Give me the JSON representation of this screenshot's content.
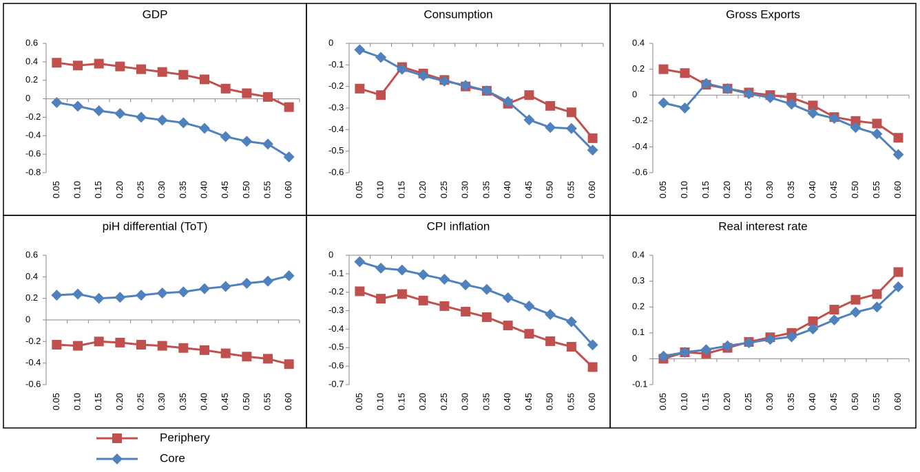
{
  "chart_data": [
    {
      "type": "line",
      "title": "GDP",
      "categories": [
        "0.05",
        "0.10",
        "0.15",
        "0.20",
        "0.25",
        "0.30",
        "0.35",
        "0.40",
        "0.45",
        "0.50",
        "0.55",
        "0.60"
      ],
      "series": [
        {
          "name": "Periphery",
          "color": "#c0504d",
          "marker": "square",
          "values": [
            0.39,
            0.36,
            0.38,
            0.35,
            0.32,
            0.29,
            0.26,
            0.21,
            0.11,
            0.06,
            0.02,
            -0.09
          ]
        },
        {
          "name": "Core",
          "color": "#4f81bd",
          "marker": "diamond",
          "values": [
            -0.04,
            -0.08,
            -0.13,
            -0.16,
            -0.2,
            -0.23,
            -0.26,
            -0.32,
            -0.41,
            -0.46,
            -0.49,
            -0.63
          ]
        }
      ],
      "ylim": [
        -0.8,
        0.6
      ],
      "yticks": [
        -0.8,
        -0.6,
        -0.4,
        -0.2,
        0,
        0.2,
        0.4,
        0.6
      ]
    },
    {
      "type": "line",
      "title": "Consumption",
      "categories": [
        "0.05",
        "0.10",
        "0.15",
        "0.20",
        "0.25",
        "0.30",
        "0.35",
        "0.40",
        "0.45",
        "0.50",
        "0.55",
        "0.60"
      ],
      "series": [
        {
          "name": "Periphery",
          "color": "#c0504d",
          "marker": "square",
          "values": [
            -0.21,
            -0.24,
            -0.11,
            -0.14,
            -0.17,
            -0.2,
            -0.22,
            -0.28,
            -0.24,
            -0.29,
            -0.32,
            -0.44
          ]
        },
        {
          "name": "Core",
          "color": "#4f81bd",
          "marker": "diamond",
          "values": [
            -0.03,
            -0.065,
            -0.12,
            -0.15,
            -0.175,
            -0.195,
            -0.22,
            -0.27,
            -0.355,
            -0.39,
            -0.395,
            -0.495
          ]
        }
      ],
      "ylim": [
        -0.6,
        0
      ],
      "yticks": [
        -0.6,
        -0.5,
        -0.4,
        -0.3,
        -0.2,
        -0.1,
        0
      ]
    },
    {
      "type": "line",
      "title": "Gross Exports",
      "categories": [
        "0.05",
        "0.10",
        "0.15",
        "0.20",
        "0.25",
        "0.30",
        "0.35",
        "0.40",
        "0.45",
        "0.50",
        "0.55",
        "0.60"
      ],
      "series": [
        {
          "name": "Periphery",
          "color": "#c0504d",
          "marker": "square",
          "values": [
            0.2,
            0.17,
            0.08,
            0.05,
            0.02,
            0.0,
            -0.02,
            -0.08,
            -0.17,
            -0.2,
            -0.22,
            -0.33
          ]
        },
        {
          "name": "Core",
          "color": "#4f81bd",
          "marker": "diamond",
          "values": [
            -0.06,
            -0.1,
            0.09,
            0.05,
            0.01,
            -0.02,
            -0.07,
            -0.14,
            -0.18,
            -0.25,
            -0.3,
            -0.46
          ]
        }
      ],
      "ylim": [
        -0.6,
        0.4
      ],
      "yticks": [
        -0.6,
        -0.4,
        -0.2,
        0,
        0.2,
        0.4
      ]
    },
    {
      "type": "line",
      "title": "piH differential (ToT)",
      "categories": [
        "0.05",
        "0.10",
        "0.15",
        "0.20",
        "0.25",
        "0.30",
        "0.35",
        "0.40",
        "0.45",
        "0.50",
        "0.55",
        "0.60"
      ],
      "series": [
        {
          "name": "Periphery",
          "color": "#c0504d",
          "marker": "square",
          "values": [
            -0.23,
            -0.24,
            -0.2,
            -0.21,
            -0.23,
            -0.24,
            -0.26,
            -0.28,
            -0.31,
            -0.34,
            -0.36,
            -0.41
          ]
        },
        {
          "name": "Core",
          "color": "#4f81bd",
          "marker": "diamond",
          "values": [
            0.23,
            0.24,
            0.2,
            0.21,
            0.23,
            0.25,
            0.26,
            0.29,
            0.31,
            0.34,
            0.36,
            0.41
          ]
        }
      ],
      "ylim": [
        -0.6,
        0.6
      ],
      "yticks": [
        -0.6,
        -0.4,
        -0.2,
        0,
        0.2,
        0.4,
        0.6
      ]
    },
    {
      "type": "line",
      "title": "CPI inflation",
      "categories": [
        "0.05",
        "0.10",
        "0.15",
        "0.20",
        "0.25",
        "0.30",
        "0.35",
        "0.40",
        "0.45",
        "0.50",
        "0.55",
        "0.60"
      ],
      "series": [
        {
          "name": "Periphery",
          "color": "#c0504d",
          "marker": "square",
          "values": [
            -0.195,
            -0.235,
            -0.21,
            -0.245,
            -0.275,
            -0.305,
            -0.335,
            -0.38,
            -0.425,
            -0.465,
            -0.495,
            -0.605
          ]
        },
        {
          "name": "Core",
          "color": "#4f81bd",
          "marker": "diamond",
          "values": [
            -0.035,
            -0.07,
            -0.08,
            -0.105,
            -0.13,
            -0.16,
            -0.185,
            -0.23,
            -0.275,
            -0.32,
            -0.36,
            -0.485
          ]
        }
      ],
      "ylim": [
        -0.7,
        0
      ],
      "yticks": [
        -0.7,
        -0.6,
        -0.5,
        -0.4,
        -0.3,
        -0.2,
        -0.1,
        0
      ]
    },
    {
      "type": "line",
      "title": "Real interest rate",
      "categories": [
        "0.05",
        "0.10",
        "0.15",
        "0.20",
        "0.25",
        "0.30",
        "0.35",
        "0.40",
        "0.45",
        "0.50",
        "0.55",
        "0.60"
      ],
      "series": [
        {
          "name": "Periphery",
          "color": "#c0504d",
          "marker": "square",
          "values": [
            0.0,
            0.025,
            0.02,
            0.042,
            0.065,
            0.083,
            0.1,
            0.145,
            0.19,
            0.228,
            0.25,
            0.335
          ]
        },
        {
          "name": "Core",
          "color": "#4f81bd",
          "marker": "diamond",
          "values": [
            0.01,
            0.025,
            0.035,
            0.05,
            0.062,
            0.075,
            0.085,
            0.115,
            0.15,
            0.18,
            0.2,
            0.278
          ]
        }
      ],
      "ylim": [
        -0.1,
        0.4
      ],
      "yticks": [
        -0.1,
        0,
        0.1,
        0.2,
        0.3,
        0.4
      ]
    }
  ]
}
